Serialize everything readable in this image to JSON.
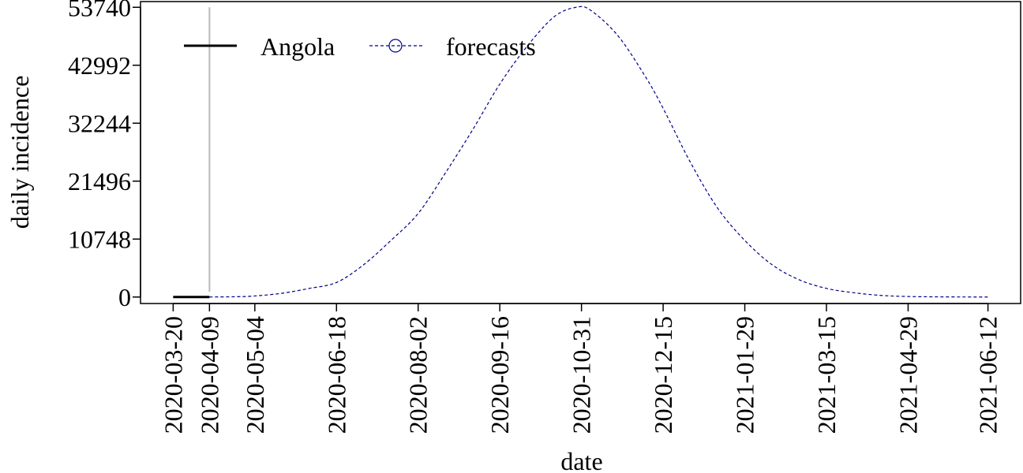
{
  "chart_data": {
    "type": "line",
    "xlabel": "date",
    "ylabel": "daily incidence",
    "y_ticks": [
      0,
      10748,
      21496,
      32244,
      42992,
      53740
    ],
    "y_tick_labels": [
      "0",
      "10748",
      "21496",
      "32244",
      "42992",
      "53740"
    ],
    "ylim": [
      -1200,
      54800
    ],
    "x_ticks": [
      "2020-03-20",
      "2020-04-09",
      "2020-05-04",
      "2020-06-18",
      "2020-08-02",
      "2020-09-16",
      "2020-10-31",
      "2020-12-15",
      "2021-01-29",
      "2021-03-15",
      "2021-04-29",
      "2021-06-12"
    ],
    "xlim": [
      "2020-03-02",
      "2021-06-30"
    ],
    "vline_date": "2020-04-09",
    "grid": false,
    "legend_position": "top-left",
    "series": [
      {
        "name": "Angola",
        "color": "#000000",
        "style": "solid",
        "x": [
          "2020-03-20",
          "2020-03-25",
          "2020-03-30",
          "2020-04-04",
          "2020-04-09"
        ],
        "values": [
          1,
          2,
          4,
          6,
          10
        ]
      },
      {
        "name": "forecasts",
        "color": "#00008b",
        "style": "dashed",
        "marker": "circle",
        "x": [
          "2020-04-09",
          "2020-04-24",
          "2020-05-04",
          "2020-05-19",
          "2020-06-03",
          "2020-06-18",
          "2020-07-03",
          "2020-07-18",
          "2020-08-02",
          "2020-08-17",
          "2020-09-01",
          "2020-09-16",
          "2020-10-01",
          "2020-10-16",
          "2020-10-28",
          "2020-11-05",
          "2020-11-20",
          "2020-12-05",
          "2020-12-15",
          "2020-12-30",
          "2021-01-14",
          "2021-01-29",
          "2021-02-13",
          "2021-02-28",
          "2021-03-15",
          "2021-03-30",
          "2021-04-14",
          "2021-04-29",
          "2021-05-14",
          "2021-05-29",
          "2021-06-12"
        ],
        "values": [
          10,
          60,
          200,
          700,
          1600,
          2700,
          6000,
          10500,
          15500,
          23000,
          31000,
          39500,
          46500,
          52000,
          53740,
          53200,
          48500,
          41000,
          35000,
          25000,
          16500,
          10500,
          6000,
          3200,
          1600,
          800,
          300,
          100,
          40,
          15,
          5
        ]
      }
    ]
  }
}
